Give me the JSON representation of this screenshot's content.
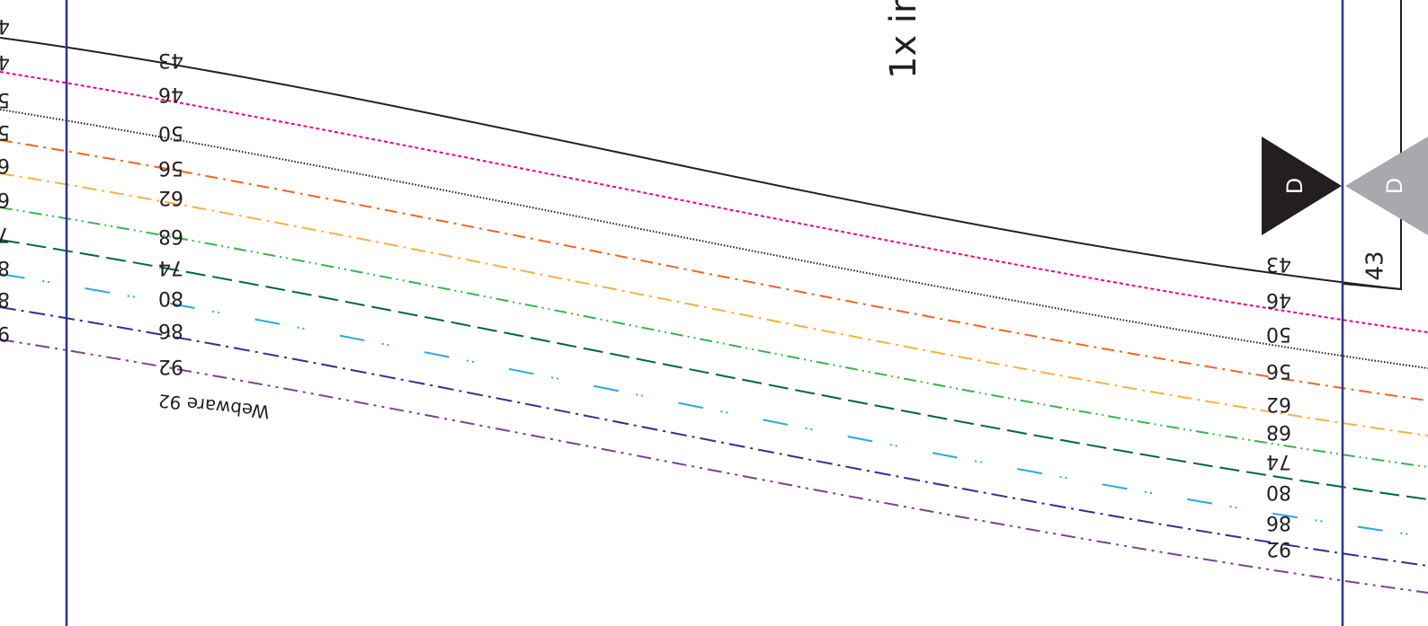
{
  "pattern": {
    "instruction_fragment": "1x im",
    "brand_label": "Webware 92",
    "notch_label": "D",
    "side_size_label": "43",
    "sizes": [
      {
        "size": "43",
        "color": "#231f20",
        "dash": "none"
      },
      {
        "size": "46",
        "color": "#ec008c",
        "dash": "4 3"
      },
      {
        "size": "50",
        "color": "#231f20",
        "dash": "1.5 2"
      },
      {
        "size": "56",
        "color": "#f26522",
        "dash": "14 6 3 6"
      },
      {
        "size": "62",
        "color": "#fbb040",
        "dash": "16 6 3 6"
      },
      {
        "size": "68",
        "color": "#39b54a",
        "dash": "14 5 2 5 2 5"
      },
      {
        "size": "74",
        "color": "#006838",
        "dash": "22 8"
      },
      {
        "size": "80",
        "color": "#27aae1",
        "dash": "28 20 2 4 2 40"
      },
      {
        "size": "86",
        "color": "#2e3192",
        "dash": "18 6 3 6"
      },
      {
        "size": "92",
        "color": "#7f3f98",
        "dash": "16 6 3 6 3 6"
      }
    ],
    "edge_color": "#2e3192",
    "notch_colors": {
      "front": "#231f20",
      "back": "#a7a9ac"
    }
  }
}
